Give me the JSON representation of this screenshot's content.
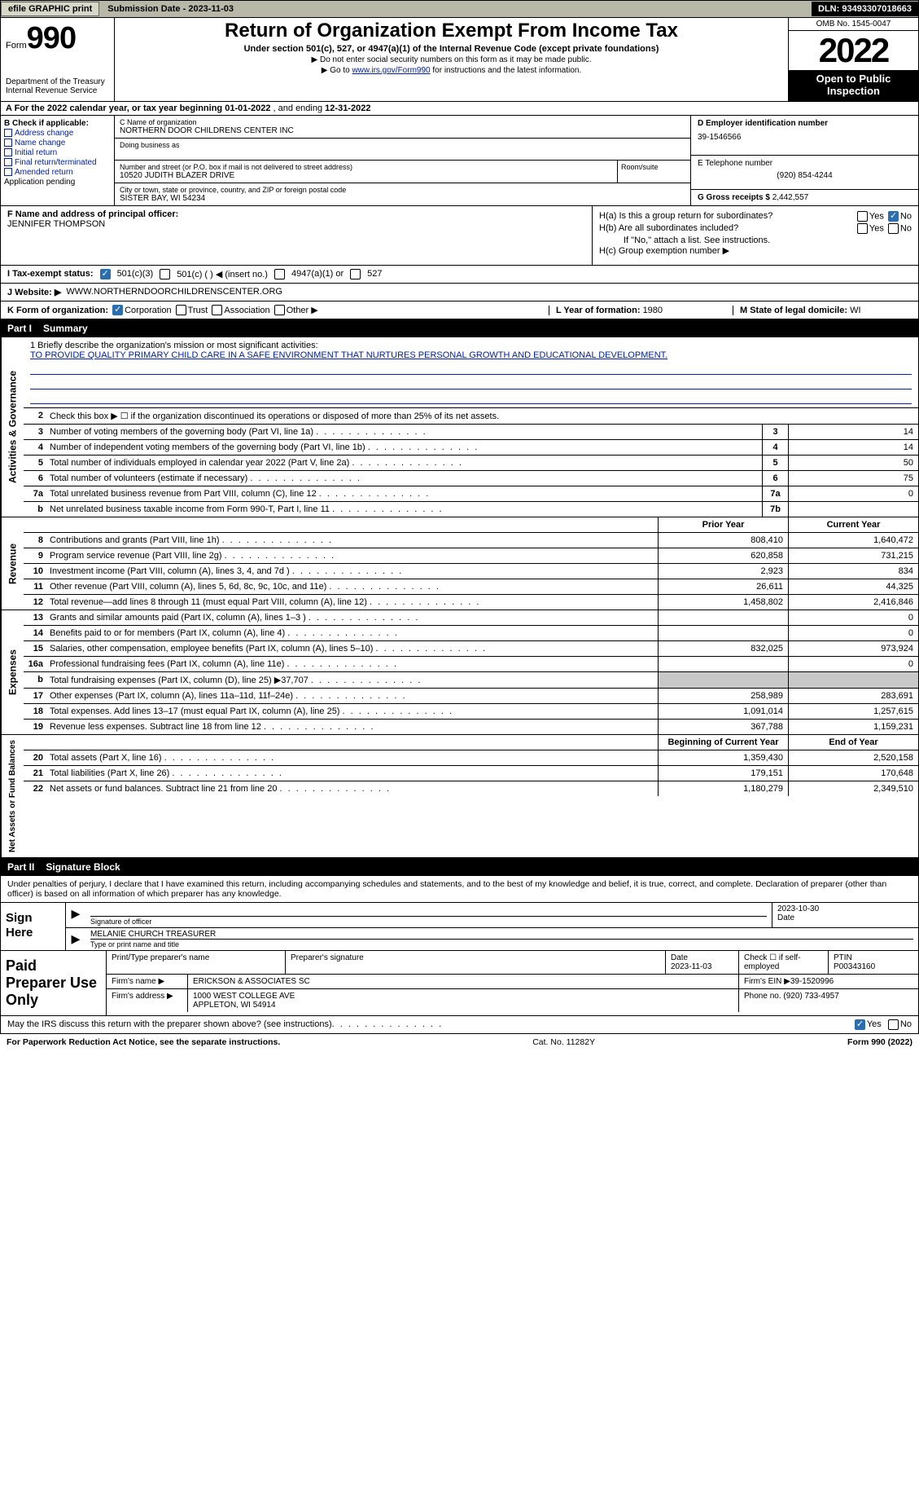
{
  "topbar": {
    "efile": "efile GRAPHIC print",
    "sub_label": "Submission Date - ",
    "sub_date": "2023-11-03",
    "dln_label": "DLN: ",
    "dln": "93493307018663"
  },
  "header": {
    "form_word": "Form",
    "form_num": "990",
    "dept": "Department of the Treasury\nInternal Revenue Service",
    "title": "Return of Organization Exempt From Income Tax",
    "sub1": "Under section 501(c), 527, or 4947(a)(1) of the Internal Revenue Code (except private foundations)",
    "sub2_prefix": "▶ Do not enter social security numbers on this form as it may be made public.",
    "sub3_prefix": "▶ Go to ",
    "sub3_link": "www.irs.gov/Form990",
    "sub3_suffix": " for instructions and the latest information.",
    "omb": "OMB No. 1545-0047",
    "year": "2022",
    "inspect": "Open to Public Inspection"
  },
  "rowA": {
    "prefix": "A For the 2022 calendar year, or tax year beginning ",
    "begin": "01-01-2022",
    "mid": " , and ending ",
    "end": "12-31-2022"
  },
  "sectionB": {
    "label": "B Check if applicable:",
    "opts": [
      "Address change",
      "Name change",
      "Initial return",
      "Final return/terminated",
      "Amended return",
      "Application pending"
    ]
  },
  "sectionC": {
    "name_lab": "C Name of organization",
    "name": "NORTHERN DOOR CHILDRENS CENTER INC",
    "dba_lab": "Doing business as",
    "addr_lab": "Number and street (or P.O. box if mail is not delivered to street address)",
    "room_lab": "Room/suite",
    "addr": "10520 JUDITH BLAZER DRIVE",
    "city_lab": "City or town, state or province, country, and ZIP or foreign postal code",
    "city": "SISTER BAY, WI  54234"
  },
  "sectionD": {
    "lab": "D Employer identification number",
    "val": "39-1546566"
  },
  "sectionE": {
    "lab": "E Telephone number",
    "val": "(920) 854-4244"
  },
  "sectionG": {
    "lab": "G Gross receipts $ ",
    "val": "2,442,557"
  },
  "sectionF": {
    "lab": "F Name and address of principal officer:",
    "name": "JENNIFER THOMPSON"
  },
  "sectionH": {
    "ha": "H(a)  Is this a group return for subordinates?",
    "hb": "H(b)  Are all subordinates included?",
    "hb_note": "If \"No,\" attach a list. See instructions.",
    "hc": "H(c)  Group exemption number ▶",
    "yes": "Yes",
    "no": "No"
  },
  "rowI": {
    "lab": "I   Tax-exempt status:",
    "o1": "501(c)(3)",
    "o2": "501(c) (  ) ◀ (insert no.)",
    "o3": "4947(a)(1) or",
    "o4": "527"
  },
  "rowJ": {
    "lab": "J   Website: ▶",
    "val": "WWW.NORTHERNDOORCHILDRENSCENTER.ORG"
  },
  "rowK": {
    "lab": "K Form of organization:",
    "o1": "Corporation",
    "o2": "Trust",
    "o3": "Association",
    "o4": "Other ▶"
  },
  "rowL": {
    "lab": "L Year of formation: ",
    "val": "1980"
  },
  "rowM": {
    "lab": "M State of legal domicile: ",
    "val": "WI"
  },
  "part1": {
    "hdr_part": "Part I",
    "hdr_title": "Summary",
    "line1_lab": "1   Briefly describe the organization's mission or most significant activities:",
    "mission": "TO PROVIDE QUALITY PRIMARY CHILD CARE IN A SAFE ENVIRONMENT THAT NURTURES PERSONAL GROWTH AND EDUCATIONAL DEVELOPMENT.",
    "line2": "Check this box ▶  ☐  if the organization discontinued its operations or disposed of more than 25% of its net assets.",
    "rows": [
      {
        "n": "3",
        "t": "Number of voting members of the governing body (Part VI, line 1a)",
        "box": "3",
        "v": "14"
      },
      {
        "n": "4",
        "t": "Number of independent voting members of the governing body (Part VI, line 1b)",
        "box": "4",
        "v": "14"
      },
      {
        "n": "5",
        "t": "Total number of individuals employed in calendar year 2022 (Part V, line 2a)",
        "box": "5",
        "v": "50"
      },
      {
        "n": "className6",
        "n2": "6",
        "t": "Total number of volunteers (estimate if necessary)",
        "box": "6",
        "v": "75"
      },
      {
        "n": "7a",
        "t": "Total unrelated business revenue from Part VIII, column (C), line 12",
        "box": "7a",
        "v": "0"
      },
      {
        "n": "b",
        "t": "Net unrelated business taxable income from Form 990-T, Part I, line 11",
        "box": "7b",
        "v": ""
      }
    ]
  },
  "fin": {
    "side_ag": "Activities & Governance",
    "side_rev": "Revenue",
    "side_exp": "Expenses",
    "side_net": "Net Assets or Fund Balances",
    "hdr_prior": "Prior Year",
    "hdr_curr": "Current Year",
    "hdr_begin": "Beginning of Current Year",
    "hdr_end": "End of Year",
    "rev": [
      {
        "n": "8",
        "t": "Contributions and grants (Part VIII, line 1h)",
        "p": "808,410",
        "c": "1,640,472"
      },
      {
        "n": "9",
        "t": "Program service revenue (Part VIII, line 2g)",
        "p": "620,858",
        "c": "731,215"
      },
      {
        "n": "10",
        "t": "Investment income (Part VIII, column (A), lines 3, 4, and 7d )",
        "p": "2,923",
        "c": "834"
      },
      {
        "n": "11",
        "t": "Other revenue (Part VIII, column (A), lines 5, 6d, 8c, 9c, 10c, and 11e)",
        "p": "26,611",
        "c": "44,325"
      },
      {
        "n": "12",
        "t": "Total revenue—add lines 8 through 11 (must equal Part VIII, column (A), line 12)",
        "p": "1,458,802",
        "c": "2,416,846"
      }
    ],
    "exp": [
      {
        "n": "13",
        "t": "Grants and similar amounts paid (Part IX, column (A), lines 1–3 )",
        "p": "",
        "c": "0"
      },
      {
        "n": "14",
        "t": "Benefits paid to or for members (Part IX, column (A), line 4)",
        "p": "",
        "c": "0"
      },
      {
        "n": "15",
        "t": "Salaries, other compensation, employee benefits (Part IX, column (A), lines 5–10)",
        "p": "832,025",
        "c": "973,924"
      },
      {
        "n": "16a",
        "t": "Professional fundraising fees (Part IX, column (A), line 11e)",
        "p": "",
        "c": "0"
      },
      {
        "n": "b",
        "t": "Total fundraising expenses (Part IX, column (D), line 25) ▶37,707",
        "p": "SHADE",
        "c": "SHADE"
      },
      {
        "n": "17",
        "t": "Other expenses (Part IX, column (A), lines 11a–11d, 11f–24e)",
        "p": "258,989",
        "c": "283,691"
      },
      {
        "n": "18",
        "t": "Total expenses. Add lines 13–17 (must equal Part IX, column (A), line 25)",
        "p": "1,091,014",
        "c": "1,257,615"
      },
      {
        "n": "19",
        "t": "Revenue less expenses. Subtract line 18 from line 12",
        "p": "367,788",
        "c": "1,159,231"
      }
    ],
    "net": [
      {
        "n": "20",
        "t": "Total assets (Part X, line 16)",
        "p": "1,359,430",
        "c": "2,520,158"
      },
      {
        "n": "21",
        "t": "Total liabilities (Part X, line 26)",
        "p": "179,151",
        "c": "170,648"
      },
      {
        "n": "22",
        "t": "Net assets or fund balances. Subtract line 21 from line 20",
        "p": "1,180,279",
        "c": "2,349,510"
      }
    ]
  },
  "part2": {
    "hdr_part": "Part II",
    "hdr_title": "Signature Block",
    "decl": "Under penalties of perjury, I declare that I have examined this return, including accompanying schedules and statements, and to the best of my knowledge and belief, it is true, correct, and complete. Declaration of preparer (other than officer) is based on all information of which preparer has any knowledge.",
    "sign_here": "Sign Here",
    "sig_lab": "Signature of officer",
    "sig_date": "2023-10-30",
    "date_lab": "Date",
    "name_title": "MELANIE CHURCH  TREASURER",
    "name_lab": "Type or print name and title"
  },
  "prep": {
    "left": "Paid Preparer Use Only",
    "r1": {
      "c1_lab": "Print/Type preparer's name",
      "c1": "",
      "c2_lab": "Preparer's signature",
      "c2": "",
      "c3_lab": "Date",
      "c3": "2023-11-03",
      "c4_lab": "Check ☐ if self-employed",
      "c5_lab": "PTIN",
      "c5": "P00343160"
    },
    "r2": {
      "lab": "Firm's name      ▶",
      "val": "ERICKSON & ASSOCIATES SC",
      "ein_lab": "Firm's EIN ▶",
      "ein": "39-1520996"
    },
    "r3": {
      "lab": "Firm's address ▶",
      "val1": "1000 WEST COLLEGE AVE",
      "val2": "APPLETON, WI  54914",
      "ph_lab": "Phone no. ",
      "ph": "(920) 733-4957"
    }
  },
  "bottom": {
    "q": "May the IRS discuss this return with the preparer shown above? (see instructions)",
    "yes": "Yes",
    "no": "No"
  },
  "footer": {
    "left": "For Paperwork Reduction Act Notice, see the separate instructions.",
    "mid": "Cat. No. 11282Y",
    "right": "Form 990 (2022)"
  }
}
